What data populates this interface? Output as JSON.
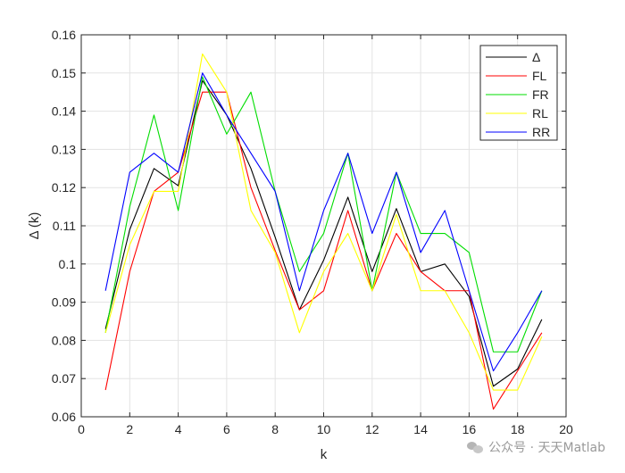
{
  "chart_data": {
    "type": "line",
    "xlabel": "k",
    "ylabel": "Δ (k)",
    "xlim": [
      0,
      20
    ],
    "ylim": [
      0.06,
      0.16
    ],
    "xticks": [
      0,
      2,
      4,
      6,
      8,
      10,
      12,
      14,
      16,
      18,
      20
    ],
    "yticks": [
      0.06,
      0.07,
      0.08,
      0.09,
      0.1,
      0.11,
      0.12,
      0.13,
      0.14,
      0.15,
      0.16
    ],
    "ytick_labels": [
      "0.06",
      "0.07",
      "0.08",
      "0.09",
      "0.1",
      "0.11",
      "0.12",
      "0.13",
      "0.14",
      "0.15",
      "0.16"
    ],
    "grid": true,
    "legend_position": "top-right",
    "x": [
      1,
      2,
      3,
      4,
      5,
      6,
      7,
      8,
      9,
      10,
      11,
      12,
      13,
      14,
      15,
      16,
      17,
      18,
      19
    ],
    "series": [
      {
        "name": "Δ",
        "color": "#000000",
        "values": [
          0.083,
          0.109,
          0.125,
          0.1205,
          0.148,
          0.139,
          0.125,
          0.107,
          0.088,
          0.101,
          0.1175,
          0.098,
          0.1145,
          0.098,
          0.1,
          0.0915,
          0.068,
          0.0725,
          0.0855
        ]
      },
      {
        "name": "FL",
        "color": "#ff0000",
        "values": [
          0.067,
          0.098,
          0.119,
          0.124,
          0.145,
          0.145,
          0.12,
          0.1035,
          0.088,
          0.093,
          0.114,
          0.093,
          0.108,
          0.098,
          0.093,
          0.093,
          0.062,
          0.072,
          0.082
        ]
      },
      {
        "name": "FR",
        "color": "#00dd00",
        "values": [
          0.082,
          0.115,
          0.139,
          0.114,
          0.149,
          0.134,
          0.145,
          0.119,
          0.098,
          0.108,
          0.129,
          0.093,
          0.124,
          0.108,
          0.108,
          0.103,
          0.077,
          0.077,
          0.093
        ]
      },
      {
        "name": "RL",
        "color": "#ffff00",
        "values": [
          0.082,
          0.105,
          0.119,
          0.119,
          0.155,
          0.145,
          0.114,
          0.103,
          0.082,
          0.098,
          0.108,
          0.093,
          0.113,
          0.093,
          0.093,
          0.082,
          0.067,
          0.067,
          0.081
        ]
      },
      {
        "name": "RR",
        "color": "#0000ff",
        "values": [
          0.093,
          0.124,
          0.129,
          0.124,
          0.15,
          0.139,
          0.129,
          0.119,
          0.093,
          0.114,
          0.129,
          0.108,
          0.124,
          0.103,
          0.114,
          0.093,
          0.072,
          0.082,
          0.093
        ]
      }
    ]
  },
  "watermark": {
    "text": "公众号 · 天天Matlab",
    "icon": "wechat-icon"
  }
}
